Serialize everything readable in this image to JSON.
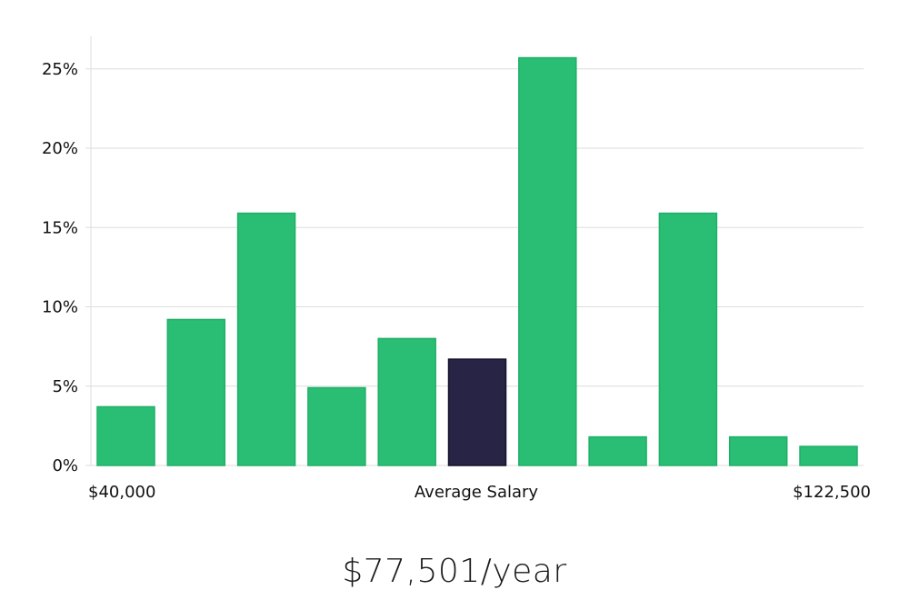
{
  "chart_data": {
    "type": "bar",
    "title": "",
    "xlabel": "Average Salary",
    "ylabel": "",
    "x_range_labels": {
      "min": "$40,000",
      "max": "$122,500"
    },
    "values": [
      3.7,
      9.2,
      15.9,
      4.9,
      8.0,
      6.7,
      25.7,
      1.8,
      15.9,
      1.8,
      1.2
    ],
    "highlight_index": 5,
    "ylim": [
      0,
      27
    ],
    "yticks": [
      0,
      5,
      10,
      15,
      20,
      25
    ],
    "ytick_labels": [
      "0%",
      "5%",
      "10%",
      "15%",
      "20%",
      "25%"
    ],
    "grid": true
  },
  "colors": {
    "bar": "#2abd74",
    "bar_border": "#1fb067",
    "highlight": "#272446",
    "highlight_border": "#15132a"
  },
  "summary": {
    "salary_text": "$77,501/year"
  }
}
